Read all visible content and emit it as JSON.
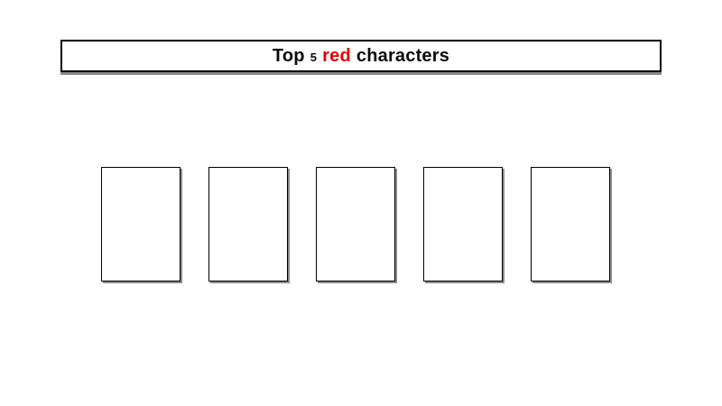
{
  "page": {
    "background_color": "#ffffff"
  },
  "title_banner": {
    "text_parts": {
      "prefix": "Top",
      "count": "5",
      "highlight": "red",
      "suffix": "characters"
    },
    "full_text": "Top 5 red characters",
    "text_color": "#0a0a0a",
    "highlight_color": "#e60000",
    "border_color": "#000000",
    "shadow_color": "#8a8a8a",
    "fill_color": "#ffffff"
  },
  "cards": {
    "count": 5,
    "items": [
      {
        "label": ""
      },
      {
        "label": ""
      },
      {
        "label": ""
      },
      {
        "label": ""
      },
      {
        "label": ""
      }
    ],
    "border_color": "#000000",
    "shadow_color": "#8a8a8a",
    "fill_color": "#ffffff"
  }
}
